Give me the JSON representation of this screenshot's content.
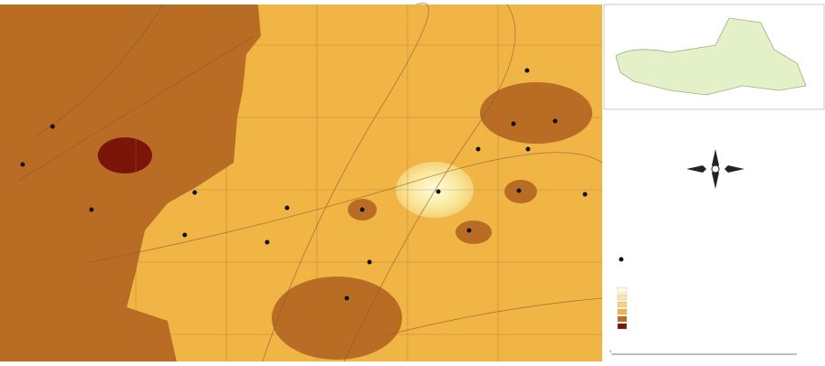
{
  "scale_bar": {
    "start_label": "0"
  }
}
